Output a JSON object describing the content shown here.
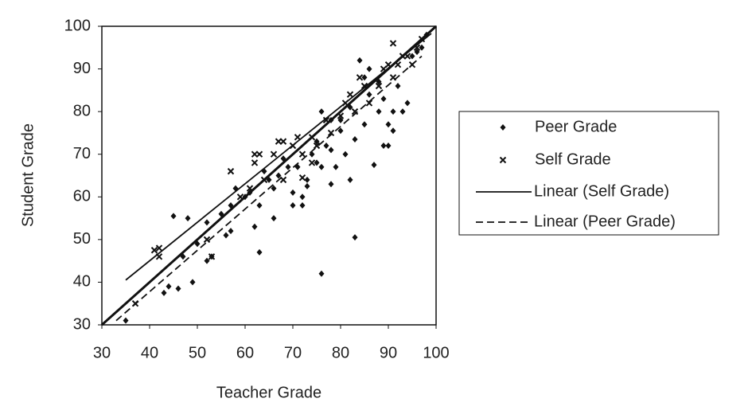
{
  "chart_data": {
    "type": "scatter",
    "x_label": "Teacher Grade",
    "y_label": "Student Grade",
    "xlim": [
      30,
      100
    ],
    "ylim": [
      30,
      100
    ],
    "xticks": [
      30,
      40,
      50,
      60,
      70,
      80,
      90,
      100
    ],
    "yticks": [
      30,
      40,
      50,
      60,
      70,
      80,
      90,
      100
    ],
    "grid": false,
    "identity_line": true,
    "legend": "right",
    "series": [
      {
        "name": "Peer Grade",
        "kind": "points",
        "marker": "diamond",
        "color": "#111",
        "x": [
          35,
          43,
          44,
          45,
          46,
          48,
          49,
          52,
          53,
          52,
          56,
          57,
          57,
          58,
          60,
          62,
          63,
          63,
          64,
          66,
          66,
          67,
          68,
          70,
          70,
          71,
          72,
          72,
          73,
          73,
          74,
          75,
          76,
          76,
          76,
          77,
          78,
          78,
          79,
          80,
          81,
          82,
          82,
          83,
          83,
          84,
          85,
          86,
          86,
          87,
          88,
          88,
          89,
          90,
          90,
          91,
          91,
          92,
          93,
          94,
          95,
          96,
          97,
          98,
          85,
          89,
          80,
          78,
          75,
          69,
          65,
          61,
          55,
          50,
          47
        ],
        "values": [
          31,
          37.5,
          39,
          55.5,
          38.5,
          55,
          40,
          45,
          46,
          54,
          51,
          52,
          58,
          62,
          60,
          53,
          47,
          58,
          66,
          55,
          62,
          65,
          69,
          58,
          61,
          67,
          58,
          60,
          64,
          62.5,
          70,
          68,
          42,
          67,
          80,
          72,
          63,
          71,
          67,
          75.5,
          70,
          64,
          81,
          50.5,
          73.5,
          92,
          77,
          84,
          90,
          67.5,
          80,
          87,
          72,
          72,
          77,
          75.5,
          80,
          86,
          80,
          82,
          93,
          94,
          95,
          98,
          88,
          83,
          78,
          78,
          73,
          67,
          64,
          61,
          56,
          49,
          46
        ]
      },
      {
        "name": "Self Grade",
        "kind": "points",
        "marker": "x",
        "color": "#111",
        "x": [
          37,
          41,
          42,
          42,
          52,
          53,
          57,
          59,
          61,
          62,
          62,
          63,
          64,
          66,
          67,
          68,
          68,
          70,
          71,
          72,
          72,
          74,
          74,
          75,
          77,
          78,
          80,
          81,
          82,
          83,
          84,
          85,
          86,
          88,
          89,
          90,
          91,
          91,
          92,
          93,
          94,
          95,
          96,
          97
        ],
        "values": [
          35,
          47.5,
          46,
          48,
          50,
          46,
          66,
          60,
          62,
          68,
          70,
          70,
          64,
          70,
          73,
          73,
          64,
          72,
          74,
          70,
          64.5,
          74,
          68,
          72,
          78,
          75,
          79,
          82,
          84,
          80,
          88,
          86,
          82,
          86,
          90,
          91,
          96,
          88,
          91,
          93,
          93,
          91,
          95,
          97
        ]
      },
      {
        "name": "Linear (Self Grade)",
        "kind": "line",
        "line_style": "solid",
        "color": "#111",
        "x": [
          35,
          99
        ],
        "values": [
          40.5,
          98.3
        ]
      },
      {
        "name": "Linear (Peer Grade)",
        "kind": "line",
        "line_style": "dashed",
        "color": "#111",
        "x": [
          33,
          97
        ],
        "values": [
          31,
          93
        ]
      }
    ]
  }
}
